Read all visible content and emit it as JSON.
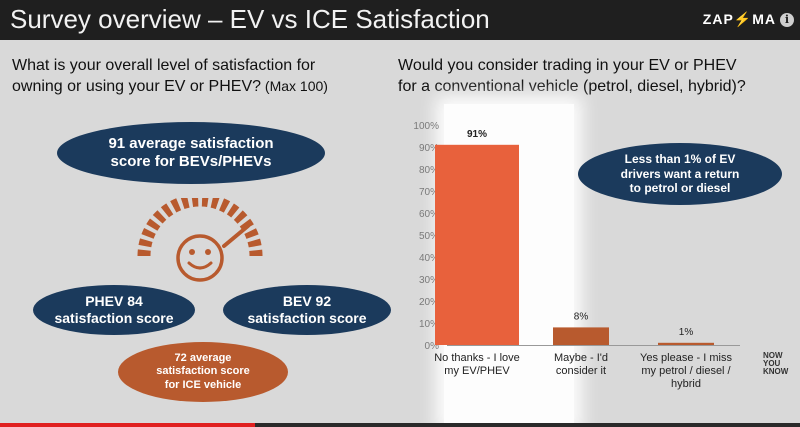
{
  "header": {
    "title": "Survey overview – EV vs ICE Satisfaction",
    "logo_text_1": "ZAP",
    "logo_text_2": "MA",
    "info_symbol": "i"
  },
  "left": {
    "question_line1": "What is your overall level of satisfaction for",
    "question_line2": "owning or using your EV or PHEV?",
    "question_suffix": " (Max 100)",
    "avg_bubble_line1": "91 average satisfaction",
    "avg_bubble_line2": "score for BEVs/PHEVs",
    "phev_line1": "PHEV 84",
    "phev_line2": "satisfaction score",
    "bev_line1": "BEV 92",
    "bev_line2": "satisfaction score",
    "ice_line1": "72 average",
    "ice_line2": "satisfaction score",
    "ice_line3": "for ICE vehicle",
    "gauge_icon": "satisfaction-gauge-smiley-icon"
  },
  "right": {
    "question_line1": "Would you consider trading in your EV or PHEV",
    "question_line2": "for a conventional vehicle (petrol, diesel, hybrid)?",
    "note_line1": "Less than 1% of EV",
    "note_line2": "drivers want a return",
    "note_line3": "to petrol or diesel"
  },
  "side_badge": [
    "NOW",
    "YOU",
    "KNOW"
  ],
  "colors": {
    "navy": "#1b3a5c",
    "rust": "#b85a2e",
    "bar_main": "#e8613c",
    "bar_small": "#b85a2e",
    "background": "#d9d9d9",
    "title_bar": "#1f1f1f"
  },
  "chart_data": {
    "type": "bar",
    "categories": [
      [
        "No thanks - I love",
        "my EV/PHEV"
      ],
      [
        "Maybe - I'd",
        "consider it"
      ],
      [
        "Yes please - I miss",
        "my petrol / diesel /",
        "hybrid"
      ]
    ],
    "values": [
      91,
      8,
      1
    ],
    "data_labels": [
      "91%",
      "8%",
      "1%"
    ],
    "ylim": [
      0,
      100
    ],
    "yticks": [
      "0%",
      "10%",
      "20%",
      "30%",
      "40%",
      "50%",
      "60%",
      "70%",
      "80%",
      "90%",
      "100%"
    ],
    "bar_colors": [
      "#e8613c",
      "#b85a2e",
      "#b85a2e"
    ],
    "highlighted_category": 0,
    "grid": false
  }
}
